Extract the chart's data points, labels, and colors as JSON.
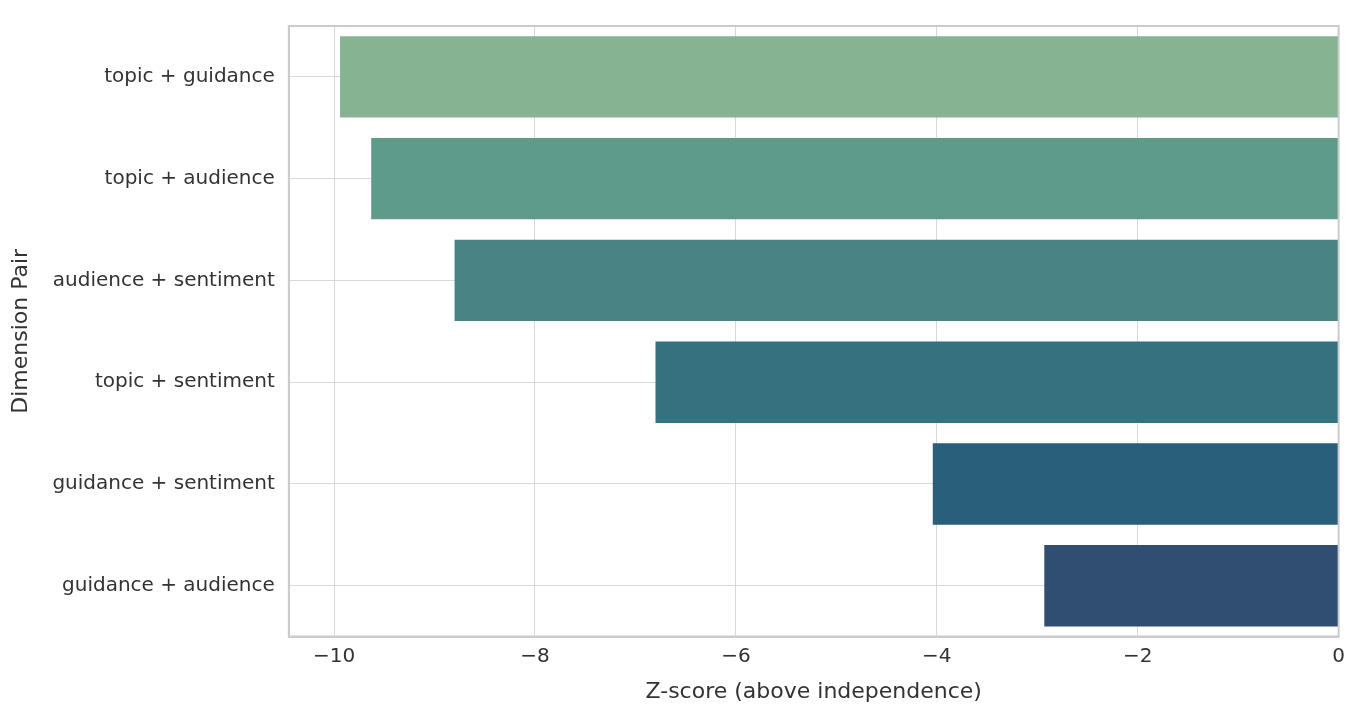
{
  "chart_data": {
    "type": "bar",
    "orientation": "horizontal",
    "xlabel": "Z-score (above independence)",
    "ylabel": "Dimension Pair",
    "categories": [
      "topic + guidance",
      "topic + audience",
      "audience + sentiment",
      "topic + sentiment",
      "guidance + sentiment",
      "guidance + audience"
    ],
    "values": [
      -9.94,
      -9.63,
      -8.8,
      -6.8,
      -4.04,
      -2.93
    ],
    "colors": [
      "#86b391",
      "#5f9b8b",
      "#498383",
      "#33727e",
      "#2a5f7b",
      "#304d72"
    ],
    "xlim": [
      -10.45,
      0
    ],
    "xticks": [
      {
        "value": -10,
        "label": "−10"
      },
      {
        "value": -8,
        "label": "−8"
      },
      {
        "value": -6,
        "label": "−6"
      },
      {
        "value": -4,
        "label": "−4"
      },
      {
        "value": -2,
        "label": "−2"
      },
      0
    ],
    "grid": true
  }
}
